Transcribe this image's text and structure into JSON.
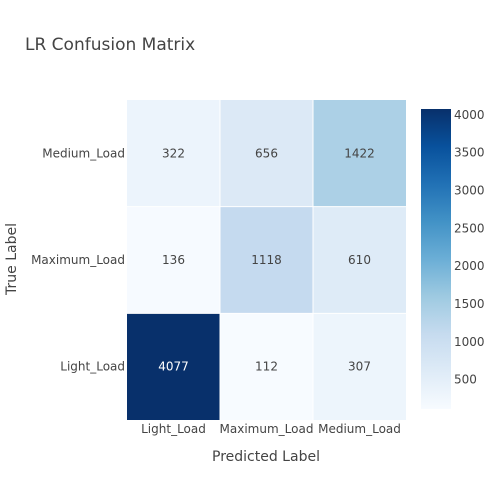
{
  "chart_data": {
    "type": "heatmap",
    "title": "LR Confusion Matrix",
    "xlabel": "Predicted Label",
    "ylabel": "True Label",
    "x_categories": [
      "Light_Load",
      "Maximum_Load",
      "Medium_Load"
    ],
    "y_categories": [
      "Light_Load",
      "Maximum_Load",
      "Medium_Load"
    ],
    "z": [
      [
        4077,
        112,
        307
      ],
      [
        136,
        1118,
        610
      ],
      [
        322,
        656,
        1422
      ]
    ],
    "colorscale": "Blues",
    "zrange": [
      112,
      4077
    ],
    "colorbar_ticks": [
      500,
      1000,
      1500,
      2000,
      2500,
      3000,
      3500,
      4000
    ],
    "colorscale_stops": [
      "#f7fbff",
      "#deebf7",
      "#c6dbef",
      "#9ecae1",
      "#6baed6",
      "#4292c6",
      "#2171b5",
      "#08519c",
      "#08306b"
    ]
  }
}
